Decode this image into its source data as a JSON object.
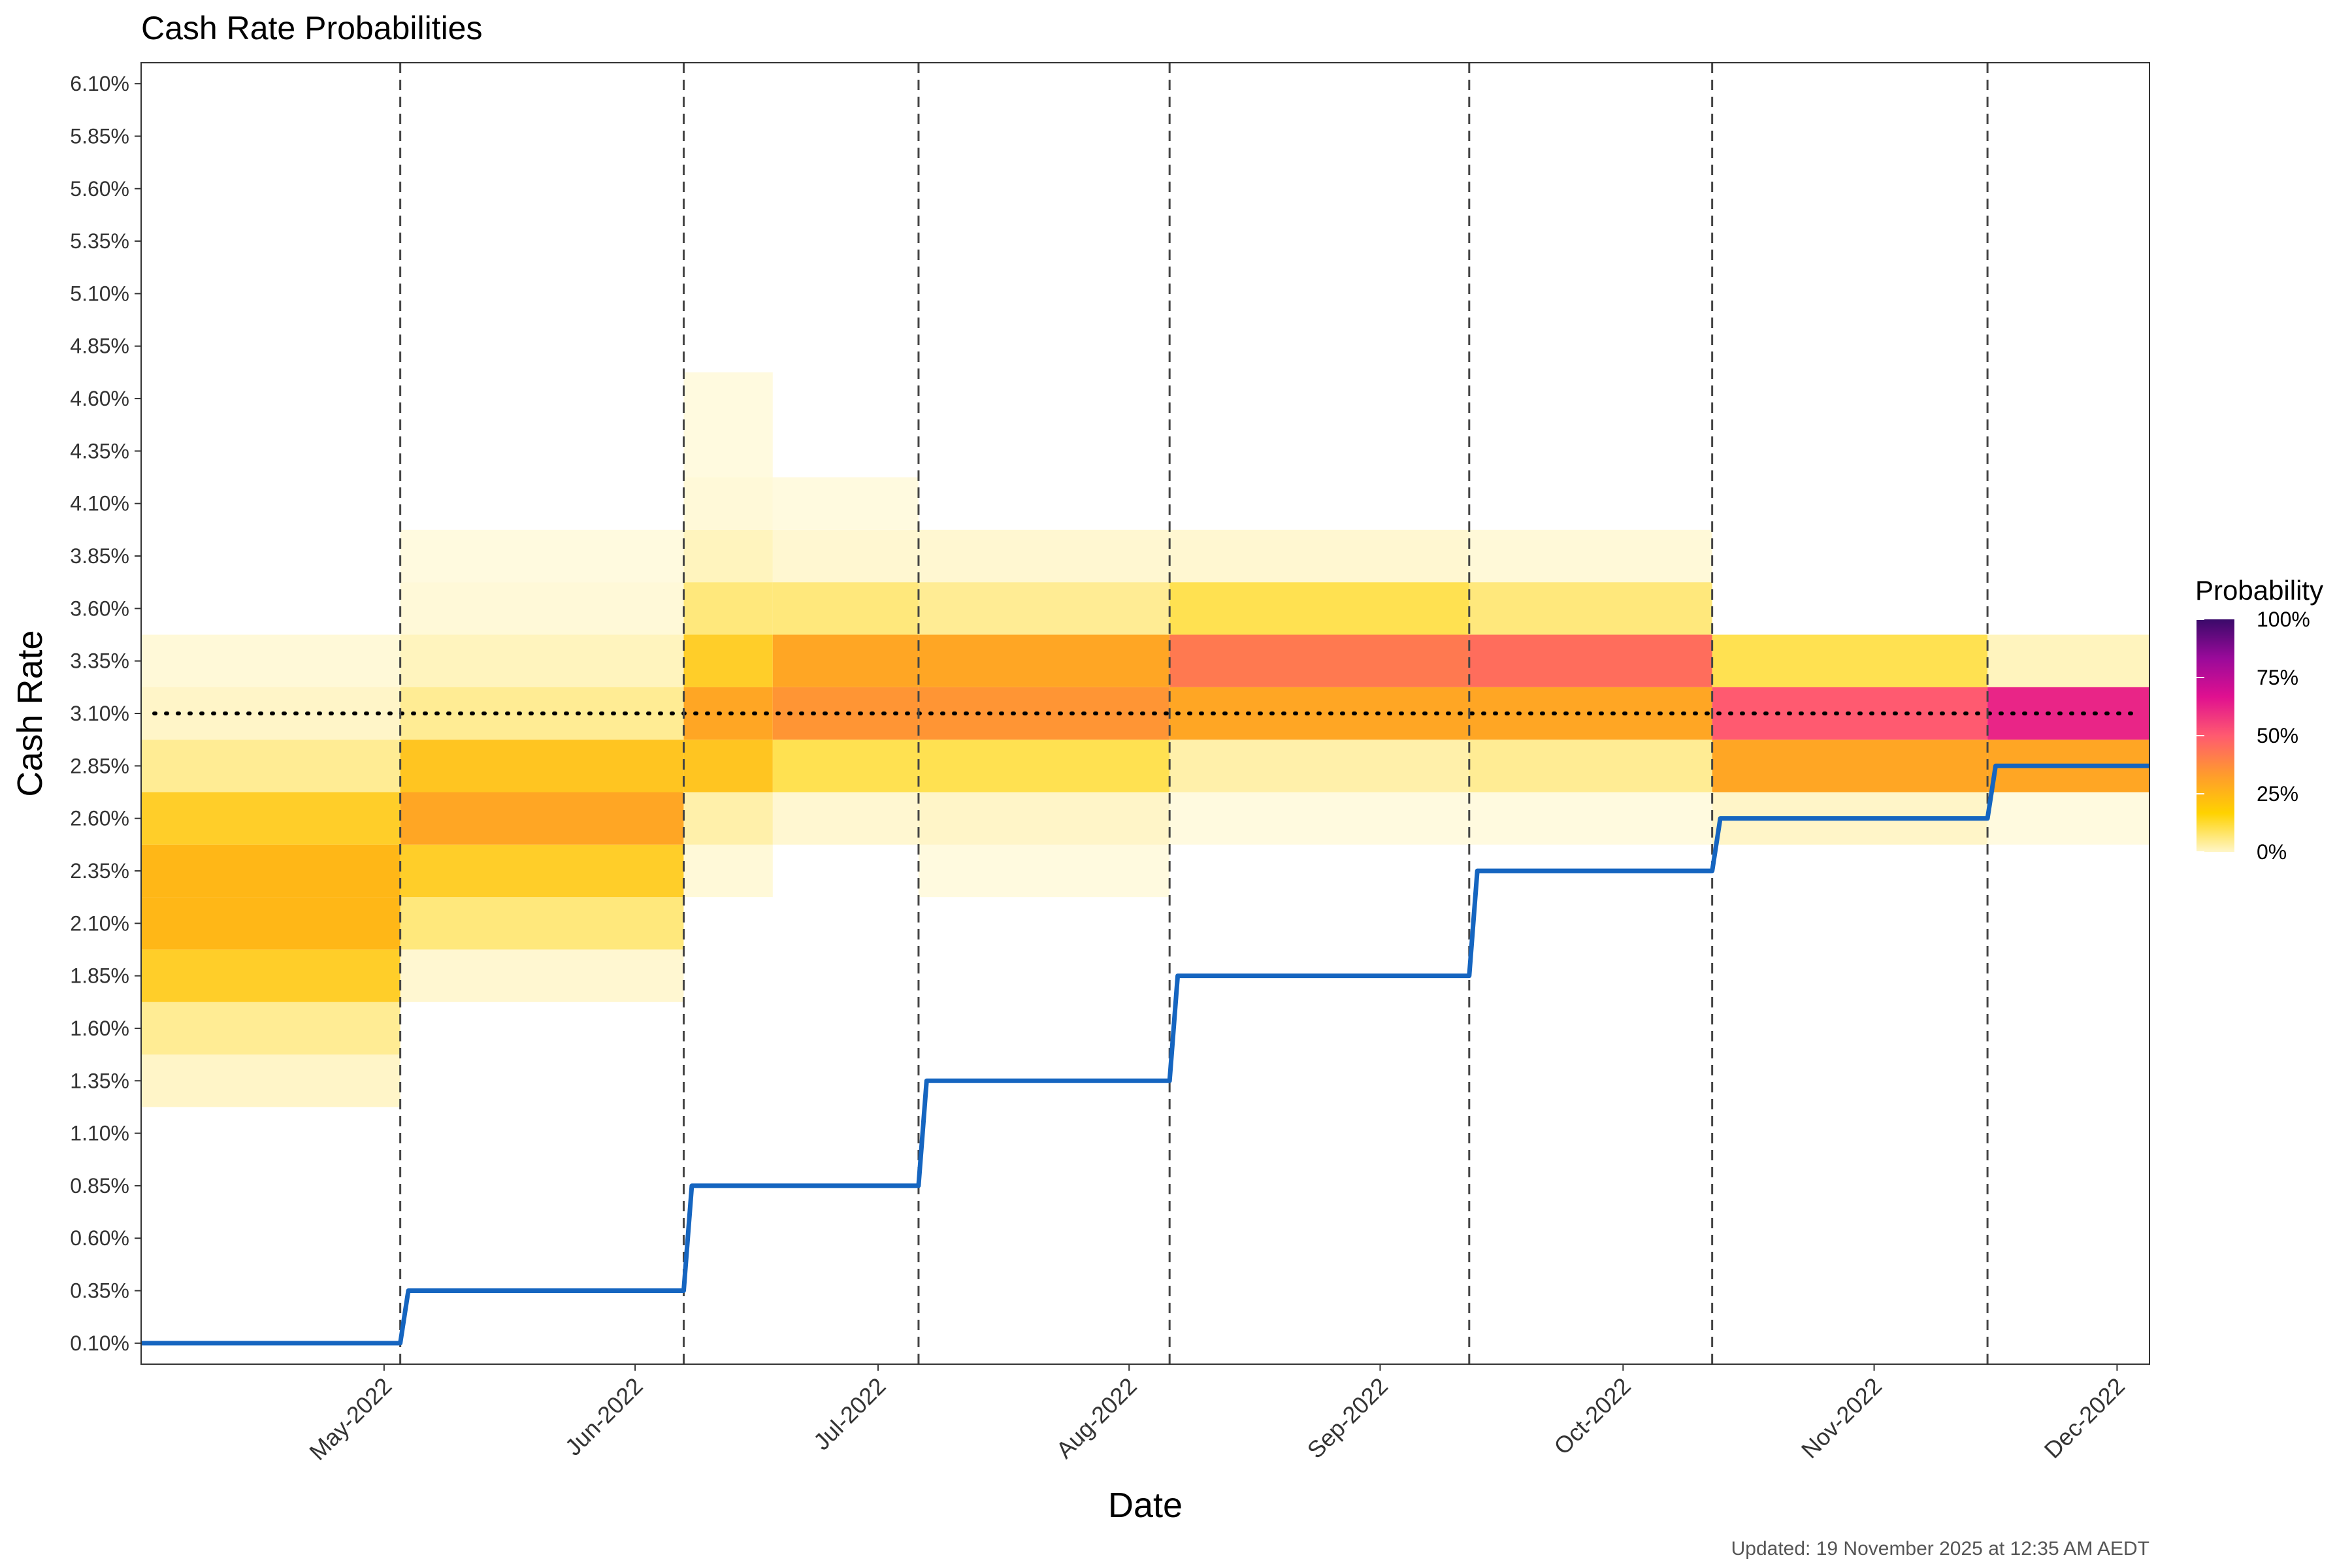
{
  "chart_data": {
    "type": "heatmap",
    "title": "Cash Rate Probabilities",
    "xlabel": "Date",
    "ylabel": "Cash Rate",
    "caption": "Updated: 19 November 2025 at 12:35 AM AEDT",
    "legend": {
      "title": "Probability",
      "labels": [
        "100%",
        "75%",
        "50%",
        "25%",
        "0%"
      ],
      "position": "right",
      "colors": [
        "#fff6c8",
        "#ffd200",
        "#ff9b2d",
        "#ff5a70",
        "#e01090",
        "#9a0a9a",
        "#3a0a6a"
      ]
    },
    "x_ticks": [
      "May-2022",
      "Jun-2022",
      "Jul-2022",
      "Aug-2022",
      "Sep-2022",
      "Oct-2022",
      "Nov-2022",
      "Dec-2022"
    ],
    "x_tick_days": [
      30,
      61,
      91,
      122,
      153,
      183,
      214,
      244
    ],
    "x_range_days": [
      0,
      248
    ],
    "y_ticks": [
      "0.10%",
      "0.35%",
      "0.60%",
      "0.85%",
      "1.10%",
      "1.35%",
      "1.60%",
      "1.85%",
      "2.10%",
      "2.35%",
      "2.60%",
      "2.85%",
      "3.10%",
      "3.35%",
      "3.60%",
      "3.85%",
      "4.10%",
      "4.35%",
      "4.60%",
      "4.85%",
      "5.10%",
      "5.35%",
      "5.60%",
      "5.85%",
      "6.10%"
    ],
    "ylim": [
      0.0,
      6.2
    ],
    "meeting_days": [
      32,
      67,
      96,
      127,
      164,
      194,
      228
    ],
    "reference_rate": 3.1,
    "cash_rate_path": {
      "color": "#1565c0",
      "days": [
        0,
        32,
        33,
        67,
        68,
        96,
        97,
        127,
        128,
        164,
        165,
        194,
        195,
        228,
        229,
        248
      ],
      "rates": [
        0.1,
        0.1,
        0.35,
        0.35,
        0.85,
        0.85,
        1.35,
        1.35,
        1.85,
        1.85,
        2.35,
        2.35,
        2.6,
        2.6,
        2.85,
        2.85
      ]
    },
    "probability_segments": [
      {
        "start": 0,
        "end": 32,
        "rates": [
          1.35,
          1.6,
          1.85,
          2.1,
          2.35,
          2.6,
          2.85,
          3.1,
          3.35
        ],
        "probs": [
          0.05,
          0.1,
          0.2,
          0.25,
          0.25,
          0.2,
          0.1,
          0.05,
          0.03
        ]
      },
      {
        "start": 32,
        "end": 67,
        "rates": [
          1.85,
          2.1,
          2.35,
          2.6,
          2.85,
          3.1,
          3.35,
          3.6,
          3.85
        ],
        "probs": [
          0.04,
          0.12,
          0.2,
          0.3,
          0.22,
          0.1,
          0.06,
          0.03,
          0.02
        ]
      },
      {
        "start": 67,
        "end": 78,
        "rates": [
          2.35,
          2.6,
          2.85,
          3.1,
          3.35,
          3.6,
          3.85,
          4.1,
          4.35,
          4.6
        ],
        "probs": [
          0.03,
          0.08,
          0.22,
          0.3,
          0.2,
          0.12,
          0.06,
          0.03,
          0.02,
          0.02
        ]
      },
      {
        "start": 78,
        "end": 96,
        "rates": [
          2.6,
          2.85,
          3.1,
          3.35,
          3.6,
          3.85,
          4.1
        ],
        "probs": [
          0.04,
          0.15,
          0.35,
          0.3,
          0.12,
          0.04,
          0.02
        ]
      },
      {
        "start": 96,
        "end": 127,
        "rates": [
          2.35,
          2.6,
          2.85,
          3.1,
          3.35,
          3.6,
          3.85
        ],
        "probs": [
          0.02,
          0.05,
          0.15,
          0.35,
          0.3,
          0.1,
          0.04
        ]
      },
      {
        "start": 127,
        "end": 164,
        "rates": [
          2.6,
          2.85,
          3.1,
          3.35,
          3.6,
          3.85
        ],
        "probs": [
          0.02,
          0.08,
          0.3,
          0.42,
          0.15,
          0.04
        ]
      },
      {
        "start": 164,
        "end": 194,
        "rates": [
          2.6,
          2.85,
          3.1,
          3.35,
          3.6,
          3.85
        ],
        "probs": [
          0.02,
          0.1,
          0.3,
          0.45,
          0.12,
          0.03
        ]
      },
      {
        "start": 194,
        "end": 228,
        "rates": [
          2.6,
          2.85,
          3.1,
          3.35
        ],
        "probs": [
          0.05,
          0.3,
          0.5,
          0.15
        ]
      },
      {
        "start": 228,
        "end": 248,
        "rates": [
          2.6,
          2.85,
          3.1,
          3.35
        ],
        "probs": [
          0.02,
          0.3,
          0.62,
          0.06
        ]
      }
    ]
  }
}
